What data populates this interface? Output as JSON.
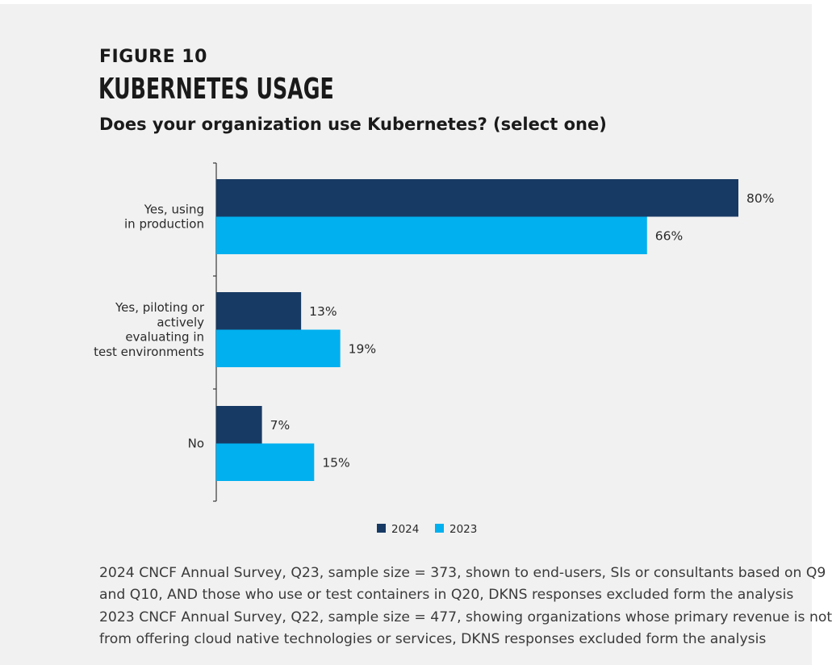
{
  "figure_label": "FIGURE 10",
  "title": "KUBERNETES USAGE",
  "question": "Does your organization use Kubernetes? (select one)",
  "chart_data": {
    "type": "bar",
    "orientation": "horizontal",
    "categories": [
      [
        "Yes, using",
        "in production"
      ],
      [
        "Yes, piloting or",
        "actively",
        "evaluating in",
        "test environments"
      ],
      [
        "No"
      ]
    ],
    "series": [
      {
        "name": "2024",
        "values": [
          80,
          13,
          7
        ],
        "color": "#173a64"
      },
      {
        "name": "2023",
        "values": [
          66,
          19,
          15
        ],
        "color": "#00b0ef"
      }
    ],
    "value_suffix": "%",
    "xlim": [
      0,
      80
    ],
    "legend": "bottom-center",
    "grid": false
  },
  "notes": [
    "2024 CNCF Annual Survey, Q23, sample size = 373, shown to end-users, SIs or consultants based on Q9",
    "and Q10, AND those who use or test containers in Q20, DKNS responses excluded form the analysis",
    "2023 CNCF Annual Survey, Q22, sample size = 477, showing organizations whose primary revenue is not",
    "from offering cloud native technologies or services, DKNS responses excluded form the analysis"
  ]
}
